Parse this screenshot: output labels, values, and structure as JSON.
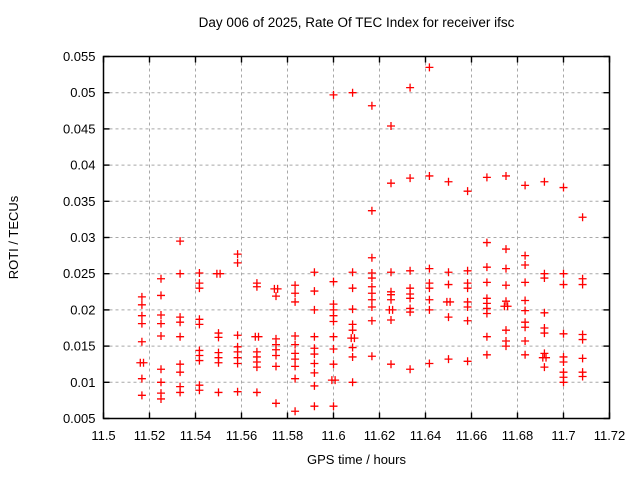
{
  "chart_data": {
    "type": "scatter",
    "title": "Day 006 of 2025, Rate Of TEC Index for receiver ifsc",
    "xlabel": "GPS time / hours",
    "ylabel": "ROTI / TECUs",
    "xlim": [
      11.5,
      11.72
    ],
    "ylim": [
      0.005,
      0.055
    ],
    "xticks": [
      11.5,
      11.52,
      11.54,
      11.56,
      11.58,
      11.6,
      11.62,
      11.64,
      11.66,
      11.68,
      11.7,
      11.72
    ],
    "xtick_labels": [
      "11.5",
      "11.52",
      "11.54",
      "11.56",
      "11.58",
      "11.6",
      "11.62",
      "11.64",
      "11.66",
      "11.68",
      "11.7",
      "11.72"
    ],
    "yticks": [
      0.005,
      0.01,
      0.015,
      0.02,
      0.025,
      0.03,
      0.035,
      0.04,
      0.045,
      0.05,
      0.055
    ],
    "ytick_labels": [
      "0.005",
      "0.01",
      "0.015",
      "0.02",
      "0.025",
      "0.03",
      "0.035",
      "0.04",
      "0.045",
      "0.05",
      "0.055"
    ],
    "grid": true,
    "legend_position": "none",
    "marker": "plus",
    "marker_color": "#ff0000",
    "grid_color": "#a8a8a8",
    "axis_color": "#000000",
    "series": [
      {
        "name": "ROTI",
        "points": [
          [
            11.516,
            0.0127
          ],
          [
            11.5174,
            0.0127
          ],
          [
            11.5167,
            0.0218
          ],
          [
            11.5167,
            0.0207
          ],
          [
            11.5167,
            0.0192
          ],
          [
            11.5167,
            0.0181
          ],
          [
            11.5167,
            0.0156
          ],
          [
            11.5167,
            0.0105
          ],
          [
            11.5167,
            0.0082
          ],
          [
            11.525,
            0.0243
          ],
          [
            11.525,
            0.022
          ],
          [
            11.525,
            0.0193
          ],
          [
            11.525,
            0.0181
          ],
          [
            11.525,
            0.0164
          ],
          [
            11.525,
            0.0118
          ],
          [
            11.525,
            0.01
          ],
          [
            11.525,
            0.0085
          ],
          [
            11.525,
            0.0077
          ],
          [
            11.5333,
            0.0295
          ],
          [
            11.5333,
            0.025
          ],
          [
            11.5333,
            0.019
          ],
          [
            11.5333,
            0.0183
          ],
          [
            11.5333,
            0.0163
          ],
          [
            11.5333,
            0.0125
          ],
          [
            11.5333,
            0.0114
          ],
          [
            11.5333,
            0.0094
          ],
          [
            11.5333,
            0.0086
          ],
          [
            11.5417,
            0.0251
          ],
          [
            11.5417,
            0.0237
          ],
          [
            11.5417,
            0.023
          ],
          [
            11.5417,
            0.0187
          ],
          [
            11.5417,
            0.018
          ],
          [
            11.5417,
            0.0144
          ],
          [
            11.5417,
            0.0137
          ],
          [
            11.5417,
            0.013
          ],
          [
            11.5417,
            0.0096
          ],
          [
            11.5417,
            0.0089
          ],
          [
            11.5493,
            0.025
          ],
          [
            11.5507,
            0.025
          ],
          [
            11.55,
            0.0168
          ],
          [
            11.55,
            0.0162
          ],
          [
            11.55,
            0.0141
          ],
          [
            11.55,
            0.0134
          ],
          [
            11.55,
            0.0127
          ],
          [
            11.55,
            0.0086
          ],
          [
            11.5583,
            0.0277
          ],
          [
            11.5583,
            0.0265
          ],
          [
            11.5583,
            0.0165
          ],
          [
            11.5583,
            0.0149
          ],
          [
            11.5583,
            0.0142
          ],
          [
            11.5583,
            0.0134
          ],
          [
            11.5583,
            0.0126
          ],
          [
            11.5583,
            0.0087
          ],
          [
            11.566,
            0.0163
          ],
          [
            11.5674,
            0.0163
          ],
          [
            11.5667,
            0.0237
          ],
          [
            11.5667,
            0.0232
          ],
          [
            11.5667,
            0.0142
          ],
          [
            11.5667,
            0.0135
          ],
          [
            11.5667,
            0.0128
          ],
          [
            11.5667,
            0.0121
          ],
          [
            11.5667,
            0.0086
          ],
          [
            11.5743,
            0.0229
          ],
          [
            11.5757,
            0.0229
          ],
          [
            11.575,
            0.0219
          ],
          [
            11.575,
            0.016
          ],
          [
            11.575,
            0.0152
          ],
          [
            11.575,
            0.0145
          ],
          [
            11.575,
            0.0137
          ],
          [
            11.575,
            0.0122
          ],
          [
            11.575,
            0.0071
          ],
          [
            11.5833,
            0.0234
          ],
          [
            11.5833,
            0.0223
          ],
          [
            11.5833,
            0.0211
          ],
          [
            11.5833,
            0.0164
          ],
          [
            11.5833,
            0.0152
          ],
          [
            11.5833,
            0.014
          ],
          [
            11.5833,
            0.0132
          ],
          [
            11.5833,
            0.0122
          ],
          [
            11.5833,
            0.0105
          ],
          [
            11.5833,
            0.006
          ],
          [
            11.5917,
            0.0252
          ],
          [
            11.5917,
            0.0226
          ],
          [
            11.5917,
            0.02
          ],
          [
            11.5917,
            0.0163
          ],
          [
            11.5917,
            0.0147
          ],
          [
            11.5917,
            0.0139
          ],
          [
            11.5917,
            0.0126
          ],
          [
            11.5917,
            0.0113
          ],
          [
            11.5917,
            0.0095
          ],
          [
            11.5917,
            0.0067
          ],
          [
            11.6,
            0.0497
          ],
          [
            11.6,
            0.0239
          ],
          [
            11.6,
            0.0208
          ],
          [
            11.6,
            0.02
          ],
          [
            11.6,
            0.0192
          ],
          [
            11.6,
            0.0184
          ],
          [
            11.6,
            0.0163
          ],
          [
            11.6,
            0.0146
          ],
          [
            11.6,
            0.0125
          ],
          [
            11.5993,
            0.0103
          ],
          [
            11.6007,
            0.0103
          ],
          [
            11.6,
            0.0067
          ],
          [
            11.6083,
            0.05
          ],
          [
            11.6083,
            0.0252
          ],
          [
            11.6083,
            0.023
          ],
          [
            11.6083,
            0.0201
          ],
          [
            11.6083,
            0.018
          ],
          [
            11.6083,
            0.0172
          ],
          [
            11.6077,
            0.0161
          ],
          [
            11.6091,
            0.0161
          ],
          [
            11.6083,
            0.0148
          ],
          [
            11.6083,
            0.0135
          ],
          [
            11.6083,
            0.01
          ],
          [
            11.6167,
            0.0482
          ],
          [
            11.6167,
            0.0337
          ],
          [
            11.6167,
            0.0272
          ],
          [
            11.6167,
            0.0251
          ],
          [
            11.6167,
            0.0244
          ],
          [
            11.6167,
            0.0232
          ],
          [
            11.6167,
            0.0223
          ],
          [
            11.6167,
            0.0214
          ],
          [
            11.6167,
            0.0204
          ],
          [
            11.6167,
            0.0185
          ],
          [
            11.6167,
            0.0136
          ],
          [
            11.625,
            0.0454
          ],
          [
            11.625,
            0.0375
          ],
          [
            11.625,
            0.0252
          ],
          [
            11.625,
            0.0225
          ],
          [
            11.625,
            0.0221
          ],
          [
            11.625,
            0.0214
          ],
          [
            11.6243,
            0.02
          ],
          [
            11.6257,
            0.02
          ],
          [
            11.625,
            0.0186
          ],
          [
            11.625,
            0.0125
          ],
          [
            11.6333,
            0.0507
          ],
          [
            11.6333,
            0.0382
          ],
          [
            11.6333,
            0.0254
          ],
          [
            11.6333,
            0.023
          ],
          [
            11.6333,
            0.0222
          ],
          [
            11.6333,
            0.0216
          ],
          [
            11.6333,
            0.0202
          ],
          [
            11.6333,
            0.0197
          ],
          [
            11.6333,
            0.0118
          ],
          [
            11.6417,
            0.0535
          ],
          [
            11.6417,
            0.0385
          ],
          [
            11.6417,
            0.0257
          ],
          [
            11.6417,
            0.0237
          ],
          [
            11.6417,
            0.023
          ],
          [
            11.6417,
            0.0214
          ],
          [
            11.6417,
            0.02
          ],
          [
            11.6417,
            0.0126
          ],
          [
            11.65,
            0.0377
          ],
          [
            11.65,
            0.0252
          ],
          [
            11.65,
            0.0235
          ],
          [
            11.6493,
            0.0211
          ],
          [
            11.6507,
            0.0211
          ],
          [
            11.65,
            0.019
          ],
          [
            11.65,
            0.0132
          ],
          [
            11.6583,
            0.0364
          ],
          [
            11.6583,
            0.0254
          ],
          [
            11.6583,
            0.0237
          ],
          [
            11.6583,
            0.023
          ],
          [
            11.6583,
            0.0211
          ],
          [
            11.6583,
            0.0204
          ],
          [
            11.6583,
            0.0185
          ],
          [
            11.6583,
            0.0129
          ],
          [
            11.6667,
            0.0383
          ],
          [
            11.6667,
            0.0293
          ],
          [
            11.6667,
            0.0259
          ],
          [
            11.6667,
            0.0238
          ],
          [
            11.6667,
            0.0216
          ],
          [
            11.6667,
            0.0209
          ],
          [
            11.6667,
            0.0202
          ],
          [
            11.6667,
            0.0195
          ],
          [
            11.6667,
            0.0163
          ],
          [
            11.6667,
            0.0138
          ],
          [
            11.675,
            0.0385
          ],
          [
            11.675,
            0.0284
          ],
          [
            11.675,
            0.0257
          ],
          [
            11.675,
            0.0234
          ],
          [
            11.675,
            0.0212
          ],
          [
            11.6743,
            0.0205
          ],
          [
            11.6757,
            0.0205
          ],
          [
            11.675,
            0.0172
          ],
          [
            11.675,
            0.0157
          ],
          [
            11.675,
            0.015
          ],
          [
            11.6833,
            0.0372
          ],
          [
            11.6833,
            0.0275
          ],
          [
            11.6833,
            0.0262
          ],
          [
            11.6833,
            0.0238
          ],
          [
            11.6833,
            0.0213
          ],
          [
            11.6833,
            0.0199
          ],
          [
            11.6833,
            0.0183
          ],
          [
            11.6833,
            0.0176
          ],
          [
            11.6833,
            0.0157
          ],
          [
            11.6833,
            0.0138
          ],
          [
            11.6917,
            0.0377
          ],
          [
            11.6917,
            0.025
          ],
          [
            11.6917,
            0.0244
          ],
          [
            11.6917,
            0.0196
          ],
          [
            11.6917,
            0.0175
          ],
          [
            11.6917,
            0.0168
          ],
          [
            11.6917,
            0.014
          ],
          [
            11.691,
            0.0134
          ],
          [
            11.6924,
            0.0134
          ],
          [
            11.6917,
            0.0121
          ],
          [
            11.7,
            0.0369
          ],
          [
            11.7,
            0.025
          ],
          [
            11.7,
            0.0235
          ],
          [
            11.7,
            0.0167
          ],
          [
            11.7,
            0.0135
          ],
          [
            11.7,
            0.0128
          ],
          [
            11.7,
            0.0114
          ],
          [
            11.7,
            0.0107
          ],
          [
            11.7,
            0.01
          ],
          [
            11.7083,
            0.0328
          ],
          [
            11.7083,
            0.0243
          ],
          [
            11.7083,
            0.0235
          ],
          [
            11.7083,
            0.0166
          ],
          [
            11.7083,
            0.0159
          ],
          [
            11.7083,
            0.0133
          ],
          [
            11.7083,
            0.0114
          ],
          [
            11.7083,
            0.0108
          ]
        ]
      }
    ]
  }
}
